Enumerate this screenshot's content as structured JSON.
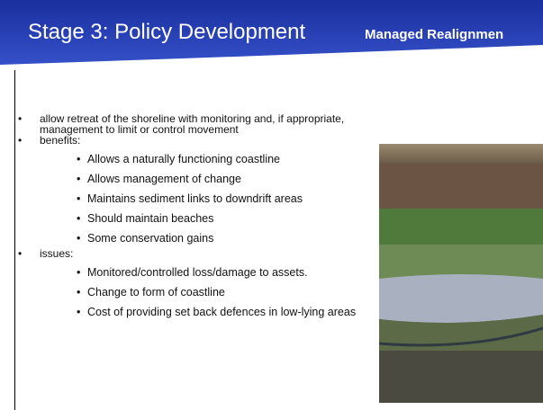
{
  "header": {
    "title": "Stage 3: Policy Development",
    "subtitle": "Managed Realignmen"
  },
  "bullets": [
    {
      "text": "allow retreat of the shoreline with monitoring and, if appropriate, management to limit or control movement",
      "items": []
    },
    {
      "text": "benefits:",
      "items": [
        "Allows a naturally functioning coastline",
        "Allows management of change",
        "Maintains sediment links to downdrift areas",
        "Should maintain beaches",
        "Some conservation gains"
      ]
    },
    {
      "text": "issues:",
      "items": [
        "Monitored/controlled loss/damage to assets.",
        "Change to form of coastline",
        "Cost of providing set back defences in low-lying areas"
      ]
    }
  ]
}
